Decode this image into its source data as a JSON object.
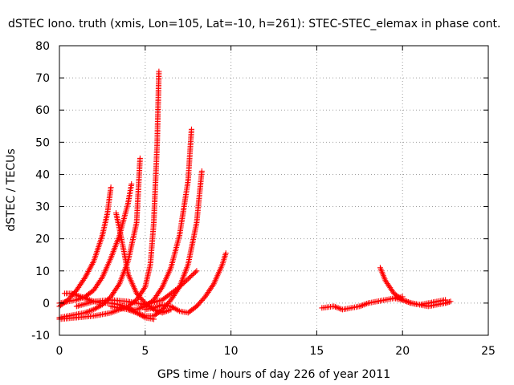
{
  "chart_data": {
    "type": "scatter",
    "title": "dSTEC Iono. truth (xmis, Lon=105, Lat=-10, h=261): STEC-STEC_elemax in phase cont.",
    "xlabel": "GPS time / hours of day 226 of year 2011",
    "ylabel": "dSTEC  / TECUs",
    "xlim": [
      0,
      25
    ],
    "ylim": [
      -10,
      80
    ],
    "x_ticks": [
      "0",
      "5",
      "10",
      "15",
      "20",
      "25"
    ],
    "y_ticks": [
      "-10",
      "0",
      "10",
      "20",
      "30",
      "40",
      "50",
      "60",
      "70",
      "80"
    ],
    "grid": true,
    "marker": "+",
    "series_color": "#ff0000",
    "series": [
      {
        "x": [
          0.0,
          0.5,
          1.0,
          1.5,
          2.0,
          2.5,
          2.8,
          3.0
        ],
        "y": [
          -1.0,
          1.0,
          4.0,
          8.0,
          13.0,
          21.0,
          28.0,
          36.0
        ]
      },
      {
        "x": [
          0.0,
          0.5,
          1.0,
          1.5,
          2.0,
          2.5,
          3.0,
          3.5,
          4.0,
          4.2
        ],
        "y": [
          0.0,
          0.5,
          1.0,
          2.0,
          4.0,
          8.0,
          14.0,
          21.0,
          31.0,
          37.0
        ]
      },
      {
        "x": [
          0.0,
          0.5,
          1.0,
          1.5,
          2.0,
          2.5,
          3.0,
          3.5,
          4.0,
          4.5,
          4.7
        ],
        "y": [
          -4.5,
          -4.0,
          -3.5,
          -3.0,
          -2.0,
          -0.5,
          2.0,
          6.0,
          13.0,
          25.0,
          45.0
        ]
      },
      {
        "x": [
          0.0,
          1.0,
          2.0,
          3.0,
          4.0,
          4.5,
          5.0,
          5.3,
          5.5,
          5.7,
          5.8
        ],
        "y": [
          -5.0,
          -4.5,
          -4.0,
          -3.0,
          -1.0,
          1.0,
          5.0,
          12.0,
          25.0,
          50.0,
          72.0
        ]
      },
      {
        "x": [
          0.3,
          0.7,
          1.0,
          1.5,
          2.0,
          2.5,
          3.0,
          3.5,
          4.0,
          4.5,
          5.0,
          5.5
        ],
        "y": [
          3.0,
          3.0,
          2.5,
          1.5,
          0.5,
          0.0,
          0.0,
          -0.5,
          -1.5,
          -3.0,
          -4.5,
          -5.0
        ]
      },
      {
        "x": [
          3.3,
          3.5,
          3.8,
          4.0,
          4.5,
          5.0,
          5.5,
          6.0,
          6.5
        ],
        "y": [
          28.0,
          23.0,
          15.0,
          9.0,
          3.0,
          0.0,
          -2.0,
          -3.0,
          -2.0
        ]
      },
      {
        "x": [
          3.0,
          3.5,
          4.0,
          4.5,
          5.0,
          5.5,
          6.0,
          6.5,
          7.0,
          7.5,
          7.7
        ],
        "y": [
          -1.0,
          -1.5,
          -2.0,
          -2.0,
          -1.0,
          1.0,
          5.0,
          11.0,
          21.0,
          38.0,
          54.0
        ]
      },
      {
        "x": [
          4.0,
          4.5,
          5.0,
          5.5,
          6.0,
          6.5,
          7.0,
          7.5,
          8.0,
          8.3
        ],
        "y": [
          -2.0,
          -3.0,
          -4.0,
          -4.0,
          -2.0,
          1.0,
          5.0,
          12.0,
          25.0,
          41.0
        ]
      },
      {
        "x": [
          1.0,
          2.0,
          3.0,
          4.0,
          5.0,
          6.0,
          7.0,
          8.0
        ],
        "y": [
          -1.0,
          0.5,
          1.0,
          0.5,
          -0.5,
          1.0,
          5.0,
          10.0
        ]
      },
      {
        "x": [
          5.0,
          5.5,
          6.0,
          6.5,
          7.0,
          7.5,
          8.0,
          8.5,
          9.0,
          9.5,
          9.7
        ],
        "y": [
          -2.0,
          -1.5,
          -0.5,
          -1.0,
          -2.5,
          -3.0,
          -1.0,
          2.0,
          6.0,
          12.0,
          15.5
        ]
      },
      {
        "x": [
          15.3,
          16.0,
          16.5,
          17.0,
          17.5,
          18.0,
          18.5,
          19.0,
          19.5,
          20.0
        ],
        "y": [
          -1.5,
          -1.0,
          -2.0,
          -1.5,
          -1.0,
          0.0,
          0.5,
          1.0,
          1.5,
          2.0
        ]
      },
      {
        "x": [
          18.7,
          19.0,
          19.5,
          20.0,
          20.5,
          21.0,
          21.5,
          22.0,
          22.5,
          22.8
        ],
        "y": [
          11.0,
          7.0,
          3.0,
          1.0,
          0.0,
          -0.5,
          -1.0,
          -0.5,
          0.0,
          0.5
        ]
      },
      {
        "x": [
          19.5,
          20.0,
          20.5,
          21.0,
          21.5,
          22.0,
          22.5
        ],
        "y": [
          1.5,
          1.0,
          0.0,
          -0.5,
          0.0,
          0.5,
          1.0
        ]
      }
    ]
  }
}
